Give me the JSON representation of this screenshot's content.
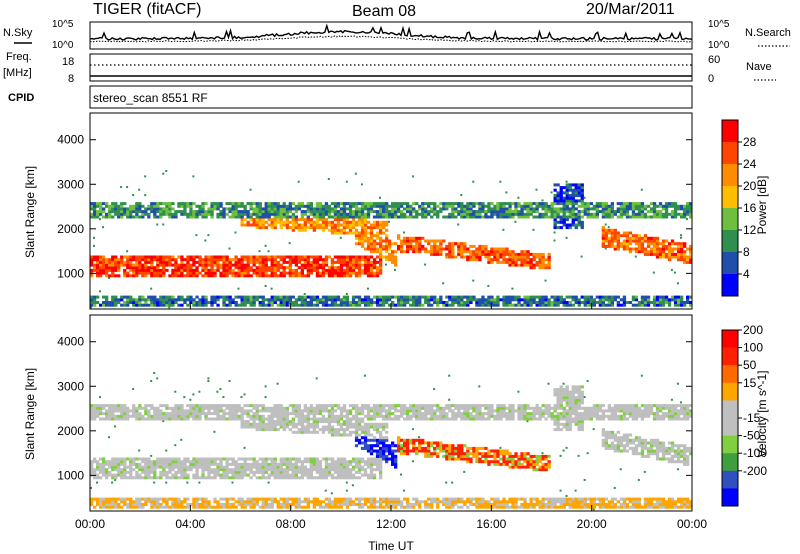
{
  "header": {
    "station": "TIGER (fitACF)",
    "beam": "Beam 08",
    "date": "20/Mar/2011"
  },
  "sky_panel": {
    "left_label": "N.Sky",
    "right_label": "N.Search",
    "tick_top": "10^5",
    "tick_bottom": "10^0"
  },
  "freq_panel": {
    "label_line1": "Freq.",
    "label_line2": "[MHz]",
    "tick_top": "18",
    "tick_bottom": "8",
    "right_label": "Nave",
    "right_tick_top": "60",
    "right_tick_bottom": "0"
  },
  "cpid_panel": {
    "label": "CPID",
    "text": "stereo_scan 8551 RF"
  },
  "colors": {
    "power": [
      "#0000ff",
      "#1f4faa",
      "#2f8f4f",
      "#6fbf3f",
      "#ffbf00",
      "#ff8c00",
      "#ff4500",
      "#ff0000"
    ],
    "velocity": [
      "#0000ff",
      "#3050c0",
      "#3f9f3f",
      "#7fcf3f",
      "#bfbfbf",
      "#bfbfbf",
      "#ffa500",
      "#ff6a00",
      "#ff2000",
      "#ff0000"
    ]
  },
  "chart_data": [
    {
      "type": "heatmap",
      "quantity": "Power",
      "ylabel": "Slant Range [km]",
      "ylim": [
        200,
        4600
      ],
      "yticks": [
        "1000",
        "2000",
        "3000",
        "4000"
      ],
      "xlim": [
        0,
        24
      ],
      "colorbar_label": "Power [dB]",
      "colorbar_ticks": [
        "4",
        "8",
        "12",
        "16",
        "20",
        "24",
        "28"
      ],
      "colorbar_range": [
        0,
        30
      ]
    },
    {
      "type": "heatmap",
      "quantity": "Velocity",
      "ylabel": "Slant Range [km]",
      "ylim": [
        200,
        4600
      ],
      "yticks": [
        "1000",
        "2000",
        "3000",
        "4000"
      ],
      "xlim": [
        0,
        24
      ],
      "xlabel": "Time UT",
      "xticks": [
        "00:00",
        "04:00",
        "08:00",
        "12:00",
        "16:00",
        "20:00",
        "00:00"
      ],
      "colorbar_label": "Velocity [m s^-1]",
      "colorbar_ticks": [
        "200",
        "100",
        "50",
        "15",
        "-15",
        "-50",
        "-100",
        "-200"
      ],
      "colorbar_range": [
        -250,
        250
      ]
    }
  ]
}
